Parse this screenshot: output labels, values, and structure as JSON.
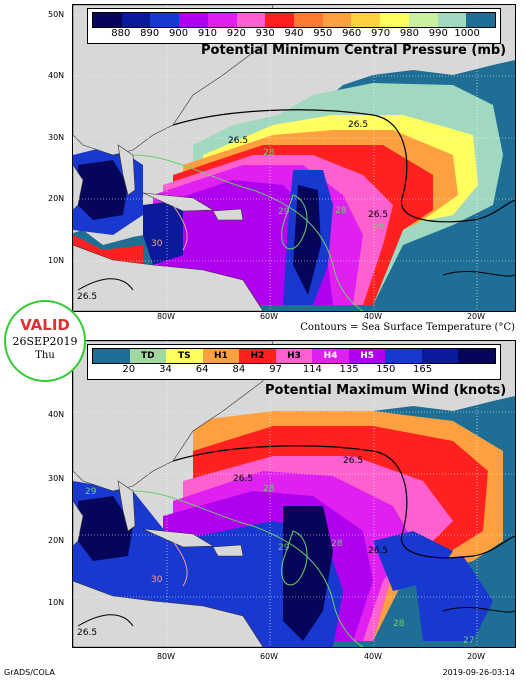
{
  "top_panel": {
    "title": "Potential Minimum Central Pressure (mb)",
    "colorbar_labels": [
      "880",
      "890",
      "900",
      "910",
      "920",
      "930",
      "940",
      "950",
      "960",
      "970",
      "980",
      "990",
      "1000"
    ],
    "colorbar_colors": [
      "#05055a",
      "#0a1a9a",
      "#1838d0",
      "#b000f0",
      "#e020f0",
      "#ff60d0",
      "#ff2020",
      "#ff7a30",
      "#ffa040",
      "#ffd040",
      "#ffff60",
      "#c8f0a0",
      "#a0d8c0",
      "#1e6e96"
    ]
  },
  "bottom_panel": {
    "title": "Potential Maximum Wind (knots)",
    "category_labels": [
      "TD",
      "TS",
      "H1",
      "H2",
      "H3",
      "H4",
      "H5"
    ],
    "colorbar_labels": [
      "20",
      "34",
      "64",
      "84",
      "97",
      "114",
      "135",
      "150",
      "165"
    ],
    "colorbar_colors": [
      "#1e6e96",
      "#a0d8a0",
      "#ffff60",
      "#ffa040",
      "#ff2020",
      "#ff60d0",
      "#e020f0",
      "#b000f0",
      "#1838d0",
      "#0a1a9a",
      "#05055a"
    ]
  },
  "lat_labels": [
    "50N",
    "40N",
    "30N",
    "20N",
    "10N"
  ],
  "lon_labels": [
    "80W",
    "60W",
    "40W",
    "20W"
  ],
  "contour_labels_top": [
    "26.5",
    "26.5",
    "26.5",
    "26.5",
    "29",
    "29",
    "30",
    "28",
    "28"
  ],
  "contour_labels_bot": [
    "26.5",
    "26.5",
    "26.5",
    "26.5",
    "29",
    "29",
    "30",
    "28",
    "28",
    "28",
    "27"
  ],
  "valid": {
    "label": "VALID",
    "date": "26SEP2019",
    "day": "Thu"
  },
  "contour_note": "Contours = Sea Surface Temperature (°C)",
  "credit_left": "GrADS/COLA",
  "credit_right": "2019-09-26-03:14"
}
